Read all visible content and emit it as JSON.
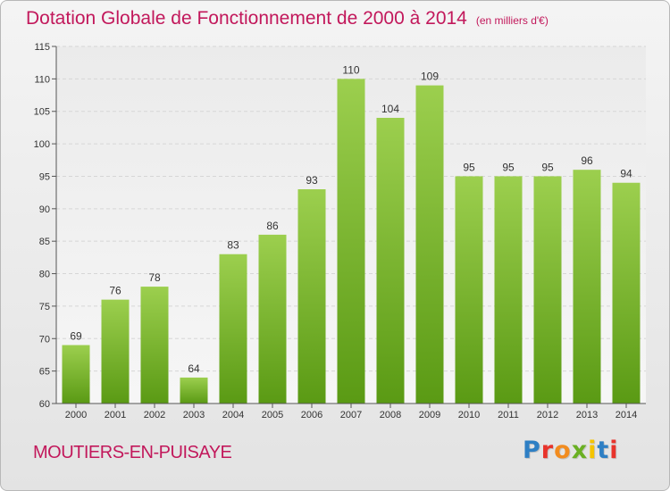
{
  "title": "Dotation Globale de Fonctionnement de 2000 à 2014",
  "subtitle": "(en milliers d'€)",
  "commune": "MOUTIERS-EN-PUISAYE",
  "logo": {
    "text": "Proxiti",
    "colors": [
      "#2e7fc4",
      "#e8332b",
      "#f28c1f",
      "#6ab023",
      "#f5c400",
      "#2e7fc4",
      "#e8332b"
    ]
  },
  "colors": {
    "title": "#c2185b",
    "bar_top": "#9ccf4e",
    "bar_bottom": "#5a9a14",
    "grid": "#d6d6d6"
  },
  "chart_data": {
    "type": "bar",
    "title": "Dotation Globale de Fonctionnement de 2000 à 2014",
    "subtitle": "(en milliers d'€)",
    "categories": [
      "2000",
      "2001",
      "2002",
      "2003",
      "2004",
      "2005",
      "2006",
      "2007",
      "2008",
      "2009",
      "2010",
      "2011",
      "2012",
      "2013",
      "2014"
    ],
    "values": [
      69,
      76,
      78,
      64,
      83,
      86,
      93,
      110,
      104,
      109,
      95,
      95,
      95,
      96,
      94
    ],
    "ylim": [
      60,
      115
    ],
    "yticks": [
      60,
      65,
      70,
      75,
      80,
      85,
      90,
      95,
      100,
      105,
      110,
      115
    ],
    "grid": true,
    "legend": "none"
  }
}
